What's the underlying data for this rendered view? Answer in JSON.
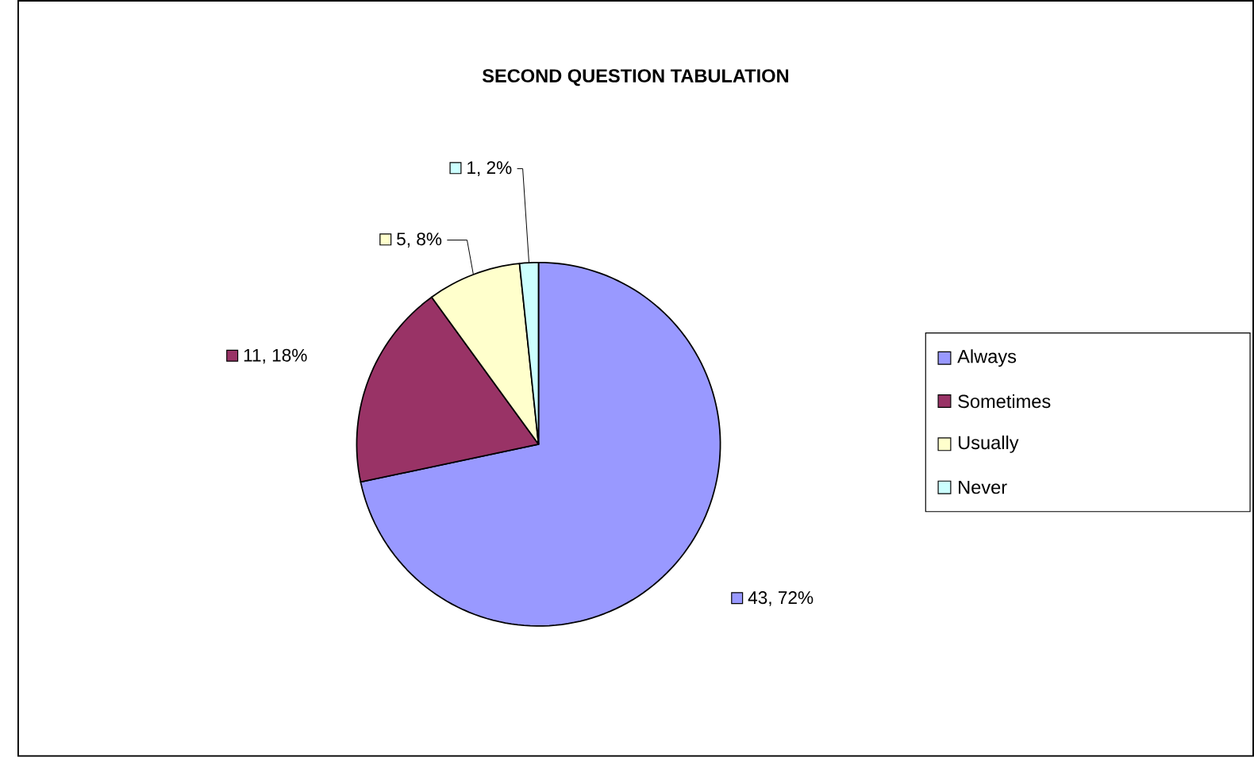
{
  "chart_data": {
    "type": "pie",
    "title": "SECOND QUESTION TABULATION",
    "categories": [
      "Always",
      "Sometimes",
      "Usually",
      "Never"
    ],
    "values": [
      43,
      11,
      5,
      1
    ],
    "colors": [
      "#9999ff",
      "#993366",
      "#ffffcc",
      "#ccffff"
    ],
    "value_labels": [
      "43, 72%",
      "11, 18%",
      "5, 8%",
      "1, 2%"
    ],
    "legend": "right"
  }
}
